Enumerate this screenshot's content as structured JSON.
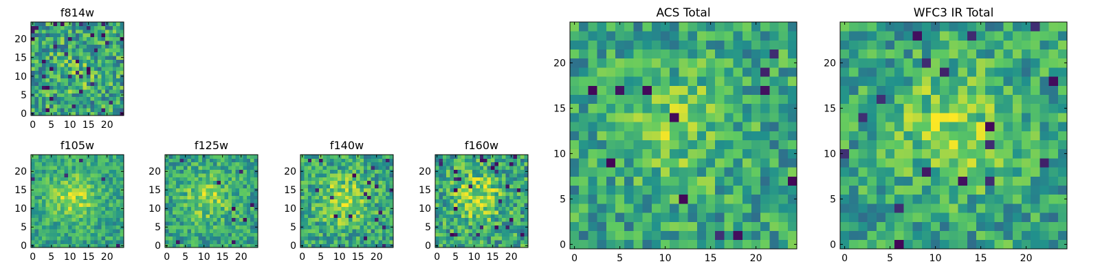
{
  "figure": {
    "colormap": [
      "#440154",
      "#3b528b",
      "#21918c",
      "#5ec962",
      "#fde725"
    ],
    "panels": [
      {
        "id": "f814w",
        "title": "f814w",
        "type": "heatmap",
        "grid": [
          25,
          25
        ],
        "xlim": [
          0,
          24
        ],
        "ylim": [
          0,
          24
        ],
        "xticks": [
          0,
          5,
          10,
          15,
          20
        ],
        "yticks": [
          0,
          5,
          10,
          15,
          20
        ],
        "center": [
          11,
          11
        ],
        "peak": 0.1,
        "noise": 0.55,
        "dark_fraction": 0.06
      },
      {
        "id": "f105w",
        "title": "f105w",
        "type": "heatmap",
        "grid": [
          25,
          25
        ],
        "xlim": [
          0,
          24
        ],
        "ylim": [
          0,
          24
        ],
        "xticks": [
          0,
          5,
          10,
          15,
          20
        ],
        "yticks": [
          0,
          5,
          10,
          15,
          20
        ],
        "center": [
          11,
          13
        ],
        "peak": 0.3,
        "noise": 0.35,
        "dark_fraction": 0.01
      },
      {
        "id": "f125w",
        "title": "f125w",
        "type": "heatmap",
        "grid": [
          25,
          25
        ],
        "xlim": [
          0,
          24
        ],
        "ylim": [
          0,
          24
        ],
        "xticks": [
          0,
          5,
          10,
          15,
          20
        ],
        "yticks": [
          0,
          5,
          10,
          15,
          20
        ],
        "center": [
          11,
          13
        ],
        "peak": 0.25,
        "noise": 0.4,
        "dark_fraction": 0.015
      },
      {
        "id": "f140w",
        "title": "f140w",
        "type": "heatmap",
        "grid": [
          25,
          25
        ],
        "xlim": [
          0,
          24
        ],
        "ylim": [
          0,
          24
        ],
        "xticks": [
          0,
          5,
          10,
          15,
          20
        ],
        "yticks": [
          0,
          5,
          10,
          15,
          20
        ],
        "center": [
          11,
          12
        ],
        "peak": 0.3,
        "noise": 0.45,
        "dark_fraction": 0.03
      },
      {
        "id": "f160w",
        "title": "f160w",
        "type": "heatmap",
        "grid": [
          25,
          25
        ],
        "xlim": [
          0,
          24
        ],
        "ylim": [
          0,
          24
        ],
        "xticks": [
          0,
          5,
          10,
          15,
          20
        ],
        "yticks": [
          0,
          5,
          10,
          15,
          20
        ],
        "center": [
          11,
          13
        ],
        "peak": 0.3,
        "noise": 0.5,
        "dark_fraction": 0.04
      },
      {
        "id": "acs-total",
        "title": "ACS Total",
        "type": "heatmap",
        "grid": [
          25,
          25
        ],
        "xlim": [
          0,
          24
        ],
        "ylim": [
          0,
          24
        ],
        "xticks": [
          0,
          5,
          10,
          15,
          20
        ],
        "yticks": [
          0,
          5,
          10,
          15,
          20
        ],
        "center": [
          11,
          13
        ],
        "peak": 0.2,
        "noise": 0.45,
        "dark_fraction": 0.025
      },
      {
        "id": "wfc3-ir-total",
        "title": "WFC3 IR Total",
        "type": "heatmap",
        "grid": [
          25,
          25
        ],
        "xlim": [
          0,
          24
        ],
        "ylim": [
          0,
          24
        ],
        "xticks": [
          0,
          5,
          10,
          15,
          20
        ],
        "yticks": [
          0,
          5,
          10,
          15,
          20
        ],
        "center": [
          12,
          13
        ],
        "peak": 0.25,
        "noise": 0.45,
        "dark_fraction": 0.025
      }
    ]
  },
  "chart_data": [
    {
      "type": "heatmap",
      "title": "f814w",
      "x": "pixel 0-24",
      "y": "pixel 0-24",
      "xticks": [
        0,
        5,
        10,
        15,
        20
      ],
      "yticks": [
        0,
        5,
        10,
        15,
        20
      ]
    },
    {
      "type": "heatmap",
      "title": "f105w",
      "xticks": [
        0,
        5,
        10,
        15,
        20
      ],
      "yticks": [
        0,
        5,
        10,
        15,
        20
      ]
    },
    {
      "type": "heatmap",
      "title": "f125w",
      "xticks": [
        0,
        5,
        10,
        15,
        20
      ],
      "yticks": [
        0,
        5,
        10,
        15,
        20
      ]
    },
    {
      "type": "heatmap",
      "title": "f140w",
      "xticks": [
        0,
        5,
        10,
        15,
        20
      ],
      "yticks": [
        0,
        5,
        10,
        15,
        20
      ]
    },
    {
      "type": "heatmap",
      "title": "f160w",
      "xticks": [
        0,
        5,
        10,
        15,
        20
      ],
      "yticks": [
        0,
        5,
        10,
        15,
        20
      ]
    },
    {
      "type": "heatmap",
      "title": "ACS Total",
      "xticks": [
        0,
        5,
        10,
        15,
        20
      ],
      "yticks": [
        0,
        5,
        10,
        15,
        20
      ]
    },
    {
      "type": "heatmap",
      "title": "WFC3 IR Total",
      "xticks": [
        0,
        5,
        10,
        15,
        20
      ],
      "yticks": [
        0,
        5,
        10,
        15,
        20
      ]
    }
  ]
}
